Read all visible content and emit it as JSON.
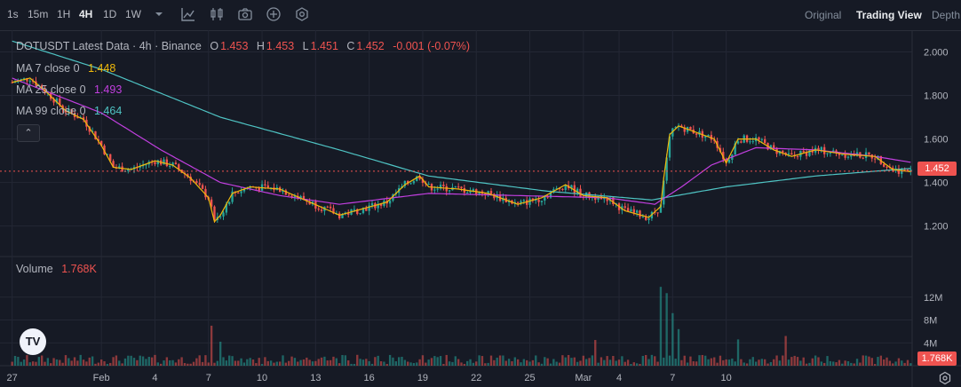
{
  "toolbar": {
    "intervals": [
      "1s",
      "15m",
      "1H",
      "4H",
      "1D",
      "1W"
    ],
    "active_interval": "4H",
    "views": [
      "Original",
      "Trading View",
      "Depth"
    ],
    "active_view": "Trading View"
  },
  "legend": {
    "title": "DOTUSDT Latest Data · 4h · Binance",
    "o_label": "O",
    "o_value": "1.453",
    "h_label": "H",
    "h_value": "1.453",
    "l_label": "L",
    "l_value": "1.451",
    "c_label": "C",
    "c_value": "1.452",
    "change": "-0.001 (-0.07%)",
    "ma7_label": "MA 7 close 0",
    "ma7_value": "1.448",
    "ma25_label": "MA 25 close 0",
    "ma25_value": "1.493",
    "ma99_label": "MA 99 close 0",
    "ma99_value": "1.464",
    "volume_label": "Volume",
    "volume_value": "1.768K",
    "logo": "TV"
  },
  "colors": {
    "up": "#26a69a",
    "down": "#ef5350",
    "ma7": "#f0b90b",
    "ma25": "#c23fe0",
    "ma99": "#4fc4c4",
    "background": "#161a25",
    "grid": "#232734"
  },
  "chart_data": {
    "type": "candlestick",
    "price_ticks": [
      "2.000",
      "1.800",
      "1.600",
      "1.400",
      "1.200"
    ],
    "price_tick_values": [
      2.0,
      1.8,
      1.6,
      1.4,
      1.2
    ],
    "current_price_label": "1.452",
    "current_price": 1.452,
    "volume_ticks": [
      "12M",
      "8M",
      "4M"
    ],
    "volume_tick_values": [
      12,
      8,
      4
    ],
    "current_volume_label": "1.768K",
    "x_ticks": [
      "27",
      "Feb",
      "4",
      "7",
      "10",
      "13",
      "16",
      "19",
      "22",
      "25",
      "Mar",
      "4",
      "7",
      "10"
    ],
    "price_range": [
      1.06,
      2.1
    ],
    "volume_range": [
      0,
      16
    ],
    "candles_per_day": 6,
    "close_path": [
      [
        0,
        1.86
      ],
      [
        6,
        1.88
      ],
      [
        12,
        1.81
      ],
      [
        18,
        1.73
      ],
      [
        24,
        1.69
      ],
      [
        30,
        1.57
      ],
      [
        34,
        1.47
      ],
      [
        40,
        1.46
      ],
      [
        48,
        1.5
      ],
      [
        54,
        1.48
      ],
      [
        60,
        1.42
      ],
      [
        66,
        1.33
      ],
      [
        68,
        1.22
      ],
      [
        70,
        1.25
      ],
      [
        74,
        1.35
      ],
      [
        80,
        1.38
      ],
      [
        90,
        1.37
      ],
      [
        100,
        1.31
      ],
      [
        110,
        1.25
      ],
      [
        118,
        1.28
      ],
      [
        126,
        1.31
      ],
      [
        132,
        1.39
      ],
      [
        137,
        1.43
      ],
      [
        140,
        1.38
      ],
      [
        150,
        1.37
      ],
      [
        160,
        1.35
      ],
      [
        170,
        1.3
      ],
      [
        178,
        1.33
      ],
      [
        186,
        1.39
      ],
      [
        192,
        1.34
      ],
      [
        200,
        1.33
      ],
      [
        206,
        1.27
      ],
      [
        214,
        1.24
      ],
      [
        218,
        1.29
      ],
      [
        219,
        1.42
      ],
      [
        221,
        1.62
      ],
      [
        224,
        1.66
      ],
      [
        230,
        1.63
      ],
      [
        236,
        1.6
      ],
      [
        240,
        1.49
      ],
      [
        244,
        1.6
      ],
      [
        250,
        1.6
      ],
      [
        256,
        1.55
      ],
      [
        262,
        1.52
      ],
      [
        270,
        1.55
      ],
      [
        280,
        1.53
      ],
      [
        290,
        1.52
      ],
      [
        296,
        1.46
      ],
      [
        302,
        1.45
      ]
    ],
    "volume_spikes": [
      [
        67,
        7.0
      ],
      [
        218,
        13.8
      ],
      [
        220,
        12.7
      ],
      [
        222,
        9.2
      ],
      [
        224,
        6.4
      ],
      [
        196,
        4.5
      ],
      [
        70,
        4.2
      ],
      [
        244,
        4.6
      ],
      [
        260,
        5.2
      ]
    ],
    "ma99_path": [
      [
        0,
        2.05
      ],
      [
        30,
        1.92
      ],
      [
        70,
        1.7
      ],
      [
        110,
        1.55
      ],
      [
        140,
        1.43
      ],
      [
        180,
        1.36
      ],
      [
        215,
        1.32
      ],
      [
        240,
        1.38
      ],
      [
        270,
        1.43
      ],
      [
        302,
        1.465
      ]
    ],
    "ma25_path": [
      [
        0,
        1.88
      ],
      [
        30,
        1.72
      ],
      [
        50,
        1.55
      ],
      [
        70,
        1.4
      ],
      [
        90,
        1.34
      ],
      [
        110,
        1.3
      ],
      [
        140,
        1.35
      ],
      [
        170,
        1.34
      ],
      [
        200,
        1.33
      ],
      [
        216,
        1.3
      ],
      [
        225,
        1.38
      ],
      [
        235,
        1.48
      ],
      [
        250,
        1.56
      ],
      [
        270,
        1.55
      ],
      [
        290,
        1.52
      ],
      [
        302,
        1.493
      ]
    ],
    "ma7_ref": 1.448
  }
}
